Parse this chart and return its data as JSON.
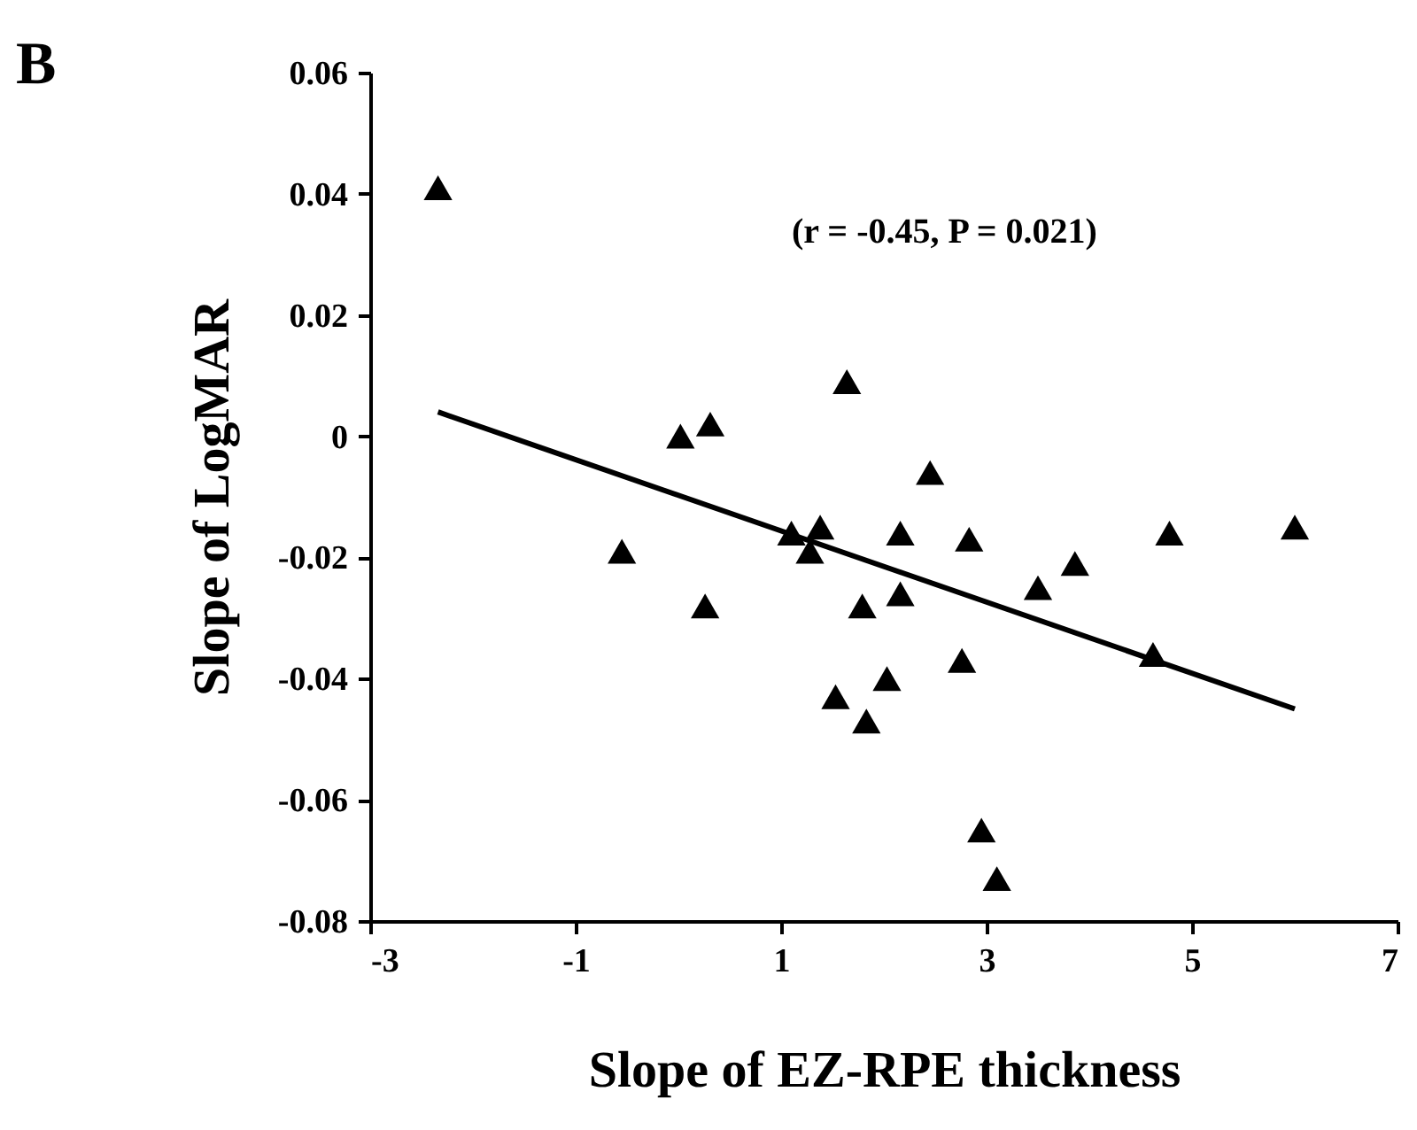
{
  "chart_data": {
    "type": "scatter",
    "title": "B",
    "xlabel": "Slope of EZ-RPE thickness",
    "ylabel": "Slope of LogMAR",
    "annotations": [
      "(r = -0.45, P = 0.021)"
    ],
    "xlim": [
      -3,
      7
    ],
    "xticks": [
      -3,
      -1,
      1,
      3,
      5,
      7
    ],
    "ylim": [
      -0.08,
      0.06
    ],
    "yticks": [
      -0.08,
      -0.06,
      -0.04,
      -0.02,
      0,
      0.02,
      0.04,
      0.06
    ],
    "grid": false,
    "series": [
      {
        "color": "#000000",
        "marker": "triangle",
        "x": [
          -2.34,
          -0.55,
          0.02,
          0.31,
          0.26,
          1.64,
          2.45,
          1.1,
          1.38,
          1.28,
          2.16,
          2.83,
          1.79,
          2.16,
          3.5,
          2.76,
          1.53,
          2.03,
          1.83,
          2.95,
          3.1,
          4.78,
          6.0,
          3.86,
          4.62
        ],
        "values": [
          0.041,
          -0.019,
          0.0,
          0.002,
          -0.028,
          0.009,
          -0.006,
          -0.016,
          -0.015,
          -0.019,
          -0.016,
          -0.017,
          -0.028,
          -0.026,
          -0.025,
          -0.037,
          -0.043,
          -0.04,
          -0.047,
          -0.065,
          -0.073,
          -0.016,
          -0.015,
          -0.021,
          -0.036
        ]
      },
      {
        "type": "line",
        "color": "#000000",
        "line_style": "solid",
        "x": [
          -2.34,
          6.0
        ],
        "values": [
          0.004,
          -0.045
        ]
      }
    ]
  }
}
